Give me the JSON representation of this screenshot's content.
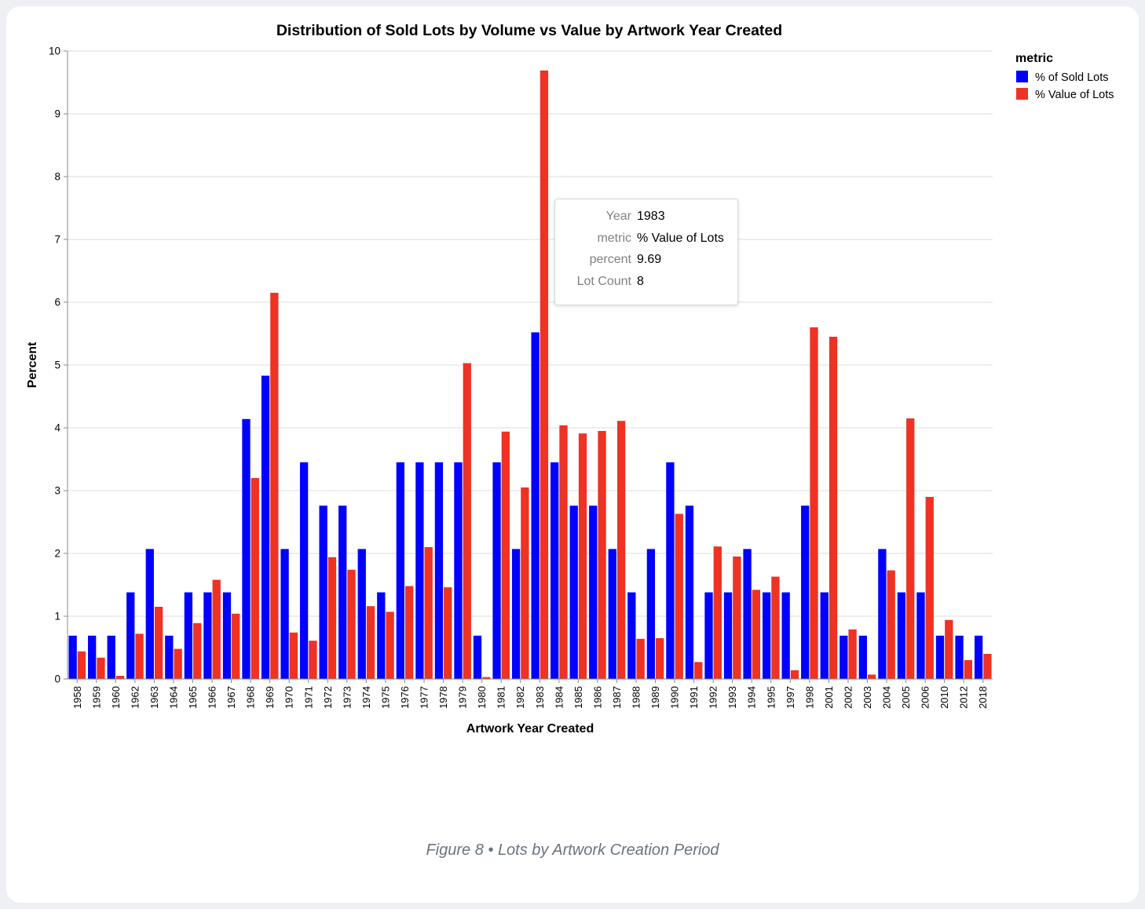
{
  "colors": {
    "sold": "#0000ff",
    "value": "#ee3224",
    "grid": "#dddddd",
    "axis": "#888888"
  },
  "chart_data": {
    "type": "bar",
    "title": "Distribution of Sold Lots by Volume vs Value by Artwork Year Created",
    "xlabel": "Artwork Year Created",
    "ylabel": "Percent",
    "ylim": [
      0,
      10
    ],
    "yticks": [
      "0",
      "1",
      "2",
      "3",
      "4",
      "5",
      "6",
      "7",
      "8",
      "9",
      "10"
    ],
    "grid": true,
    "legend": {
      "title": "metric",
      "position": "top-right"
    },
    "categories": [
      "1958",
      "1959",
      "1960",
      "1962",
      "1963",
      "1964",
      "1965",
      "1966",
      "1967",
      "1968",
      "1969",
      "1970",
      "1971",
      "1972",
      "1973",
      "1974",
      "1975",
      "1976",
      "1977",
      "1978",
      "1979",
      "1980",
      "1981",
      "1982",
      "1983",
      "1984",
      "1985",
      "1986",
      "1987",
      "1988",
      "1989",
      "1990",
      "1991",
      "1992",
      "1993",
      "1994",
      "1995",
      "1997",
      "1998",
      "2001",
      "2002",
      "2003",
      "2004",
      "2005",
      "2006",
      "2010",
      "2012",
      "2018"
    ],
    "series": [
      {
        "name": "% of Sold Lots",
        "color": "#0000ff",
        "values": [
          0.69,
          0.69,
          0.69,
          1.38,
          2.07,
          0.69,
          1.38,
          1.38,
          1.38,
          4.14,
          4.83,
          2.07,
          3.45,
          2.76,
          2.76,
          2.07,
          1.38,
          3.45,
          3.45,
          3.45,
          3.45,
          0.69,
          3.45,
          2.07,
          5.52,
          3.45,
          2.76,
          2.76,
          2.07,
          1.38,
          2.07,
          3.45,
          2.76,
          1.38,
          1.38,
          2.07,
          1.38,
          1.38,
          2.76,
          1.38,
          0.69,
          0.69,
          2.07,
          1.38,
          1.38,
          0.69,
          0.69,
          0.69
        ]
      },
      {
        "name": "% Value of Lots",
        "color": "#ee3224",
        "values": [
          0.44,
          0.34,
          0.05,
          0.72,
          1.15,
          0.48,
          0.89,
          1.58,
          1.04,
          3.2,
          6.15,
          0.74,
          0.61,
          1.94,
          1.74,
          1.16,
          1.07,
          1.48,
          2.1,
          1.46,
          5.03,
          0.03,
          3.94,
          3.05,
          9.69,
          4.04,
          3.91,
          3.95,
          4.11,
          0.64,
          0.65,
          2.63,
          0.27,
          2.11,
          1.95,
          1.42,
          1.63,
          0.14,
          5.6,
          5.45,
          0.79,
          0.07,
          1.73,
          4.15,
          2.9,
          0.94,
          0.3,
          0.4
        ]
      }
    ]
  },
  "tooltip": {
    "rows": [
      {
        "key": "Year",
        "value": "1983"
      },
      {
        "key": "metric",
        "value": "% Value of Lots"
      },
      {
        "key": "percent",
        "value": "9.69"
      },
      {
        "key": "Lot Count",
        "value": "8"
      }
    ]
  },
  "caption": "Figure 8 • Lots by Artwork Creation Period"
}
